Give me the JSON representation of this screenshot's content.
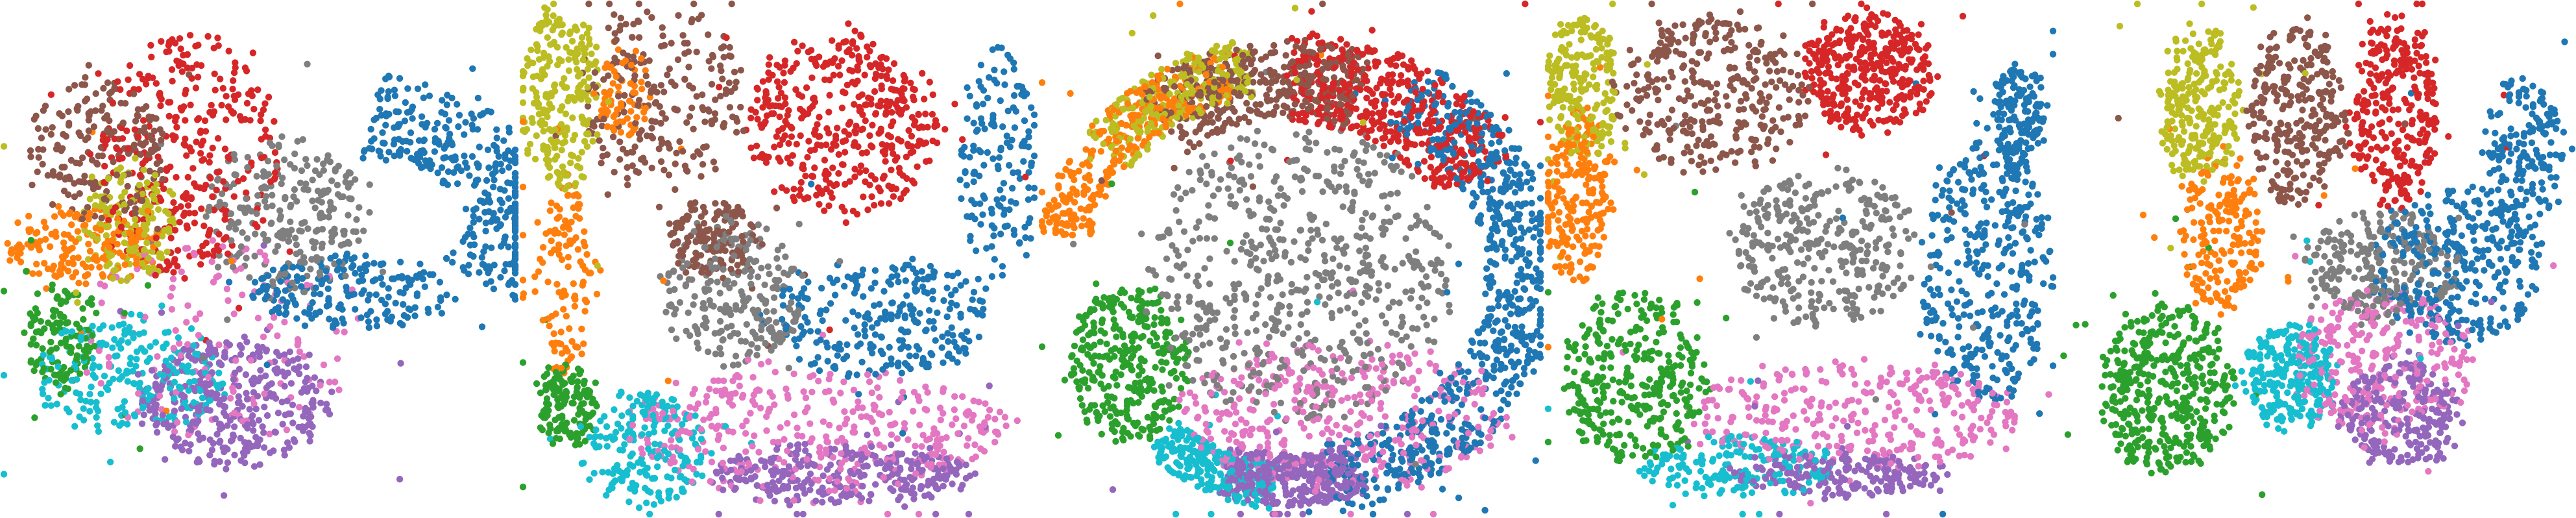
{
  "chart_data": [
    {
      "type": "scatter",
      "clusters": [
        {
          "color": "#1f77b4",
          "count": 540
        },
        {
          "color": "#ff7f0e",
          "count": 170
        },
        {
          "color": "#2ca02c",
          "count": 130
        },
        {
          "color": "#d62728",
          "count": 330
        },
        {
          "color": "#9467bd",
          "count": 360
        },
        {
          "color": "#8c564b",
          "count": 200
        },
        {
          "color": "#e377c2",
          "count": 140
        },
        {
          "color": "#7f7f7f",
          "count": 260
        },
        {
          "color": "#bcbd22",
          "count": 160
        },
        {
          "color": "#17becf",
          "count": 230
        }
      ]
    },
    {
      "type": "scatter",
      "clusters": [
        {
          "color": "#1f77b4",
          "count": 420
        },
        {
          "color": "#ff7f0e",
          "count": 200
        },
        {
          "color": "#2ca02c",
          "count": 150
        },
        {
          "color": "#d62728",
          "count": 420
        },
        {
          "color": "#9467bd",
          "count": 300
        },
        {
          "color": "#8c564b",
          "count": 380
        },
        {
          "color": "#e377c2",
          "count": 380
        },
        {
          "color": "#7f7f7f",
          "count": 240
        },
        {
          "color": "#bcbd22",
          "count": 240
        },
        {
          "color": "#17becf",
          "count": 200
        }
      ]
    },
    {
      "type": "scatter",
      "clusters": [
        {
          "color": "#1f77b4",
          "count": 700
        },
        {
          "color": "#ff7f0e",
          "count": 320
        },
        {
          "color": "#2ca02c",
          "count": 340
        },
        {
          "color": "#d62728",
          "count": 480
        },
        {
          "color": "#9467bd",
          "count": 360
        },
        {
          "color": "#8c564b",
          "count": 380
        },
        {
          "color": "#e377c2",
          "count": 380
        },
        {
          "color": "#7f7f7f",
          "count": 620
        },
        {
          "color": "#bcbd22",
          "count": 260
        },
        {
          "color": "#17becf",
          "count": 260
        }
      ]
    },
    {
      "type": "scatter",
      "clusters": [
        {
          "color": "#1f77b4",
          "count": 520
        },
        {
          "color": "#ff7f0e",
          "count": 230
        },
        {
          "color": "#2ca02c",
          "count": 340
        },
        {
          "color": "#d62728",
          "count": 380
        },
        {
          "color": "#9467bd",
          "count": 200
        },
        {
          "color": "#8c564b",
          "count": 320
        },
        {
          "color": "#e377c2",
          "count": 320
        },
        {
          "color": "#7f7f7f",
          "count": 330
        },
        {
          "color": "#bcbd22",
          "count": 220
        },
        {
          "color": "#17becf",
          "count": 180
        }
      ]
    },
    {
      "type": "scatter",
      "clusters": [
        {
          "color": "#1f77b4",
          "count": 480
        },
        {
          "color": "#ff7f0e",
          "count": 200
        },
        {
          "color": "#2ca02c",
          "count": 430
        },
        {
          "color": "#d62728",
          "count": 300
        },
        {
          "color": "#9467bd",
          "count": 260
        },
        {
          "color": "#8c564b",
          "count": 280
        },
        {
          "color": "#e377c2",
          "count": 280
        },
        {
          "color": "#7f7f7f",
          "count": 260
        },
        {
          "color": "#bcbd22",
          "count": 260
        },
        {
          "color": "#17becf",
          "count": 260
        }
      ]
    }
  ]
}
